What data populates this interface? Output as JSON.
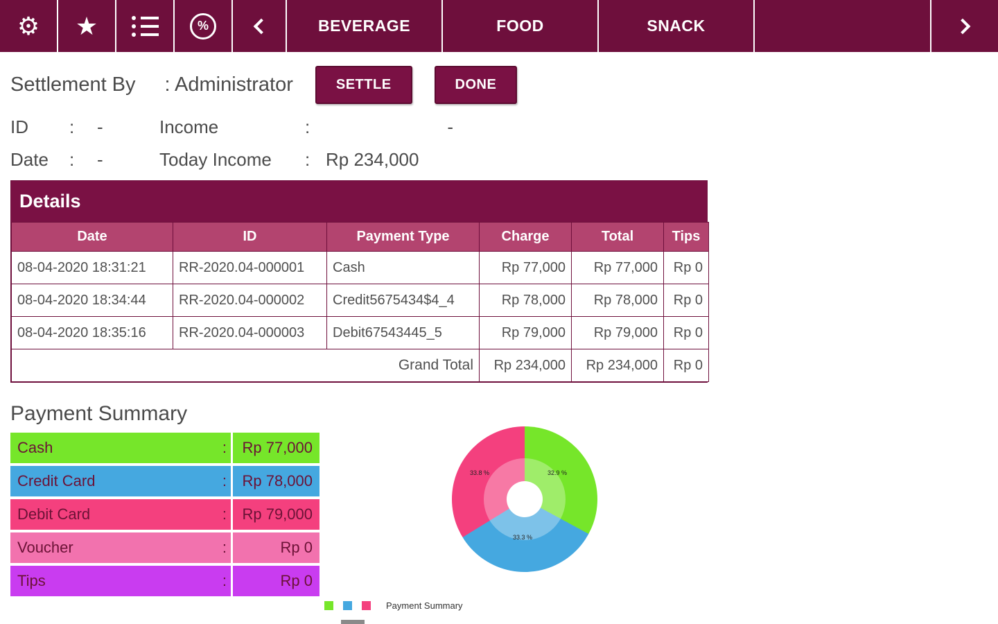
{
  "colon": ":",
  "topbar": {
    "icons": {
      "gear": "⚙",
      "star": "★",
      "discount": "%"
    },
    "tabs": [
      "BEVERAGE",
      "FOOD",
      "SNACK"
    ]
  },
  "header": {
    "settlement_by_label": "Settlement By",
    "settlement_by_value": ": Administrator",
    "settle_button": "SETTLE",
    "done_button": "DONE"
  },
  "info": {
    "id_label": "ID",
    "id_value": "-",
    "income_label": "Income",
    "income_value": "-",
    "date_label": "Date",
    "date_value": "-",
    "today_income_label": "Today Income",
    "today_income_value": "Rp 234,000"
  },
  "details": {
    "title": "Details",
    "columns": [
      "Date",
      "ID",
      "Payment Type",
      "Charge",
      "Total",
      "Tips"
    ],
    "rows": [
      [
        "08-04-2020 18:31:21",
        "RR-2020.04-000001",
        "Cash",
        "Rp 77,000",
        "Rp 77,000",
        "Rp 0"
      ],
      [
        "08-04-2020 18:34:44",
        "RR-2020.04-000002",
        "Credit5675434$4_4",
        "Rp 78,000",
        "Rp 78,000",
        "Rp 0"
      ],
      [
        "08-04-2020 18:35:16",
        "RR-2020.04-000003",
        "Debit67543445_5",
        "Rp 79,000",
        "Rp 79,000",
        "Rp 0"
      ]
    ],
    "footer": {
      "label": "Grand Total",
      "charge": "Rp 234,000",
      "total": "Rp 234,000",
      "tips": "Rp 0"
    }
  },
  "payment_summary": {
    "title": "Payment Summary",
    "rows": [
      {
        "label": "Cash",
        "value": "Rp 77,000",
        "color": "#76e62a"
      },
      {
        "label": "Credit Card",
        "value": "Rp 78,000",
        "color": "#45a8e0"
      },
      {
        "label": "Debit Card",
        "value": "Rp 79,000",
        "color": "#f4407e"
      },
      {
        "label": "Voucher",
        "value": "Rp 0",
        "color": "#f272ae"
      },
      {
        "label": "Tips",
        "value": "Rp 0",
        "color": "#c93cf0"
      }
    ],
    "legend_label": "Payment Summary"
  },
  "chart_data": {
    "type": "pie",
    "title": "Payment Summary",
    "donut": true,
    "slices": [
      {
        "label": "Cash",
        "value": 77000,
        "percent_label": "32.9 %",
        "color": "#76e62a"
      },
      {
        "label": "Credit Card",
        "value": 78000,
        "percent_label": "33.3 %",
        "color": "#45a8e0"
      },
      {
        "label": "Debit Card",
        "value": 79000,
        "percent_label": "33.8 %",
        "color": "#f4407e"
      }
    ]
  }
}
